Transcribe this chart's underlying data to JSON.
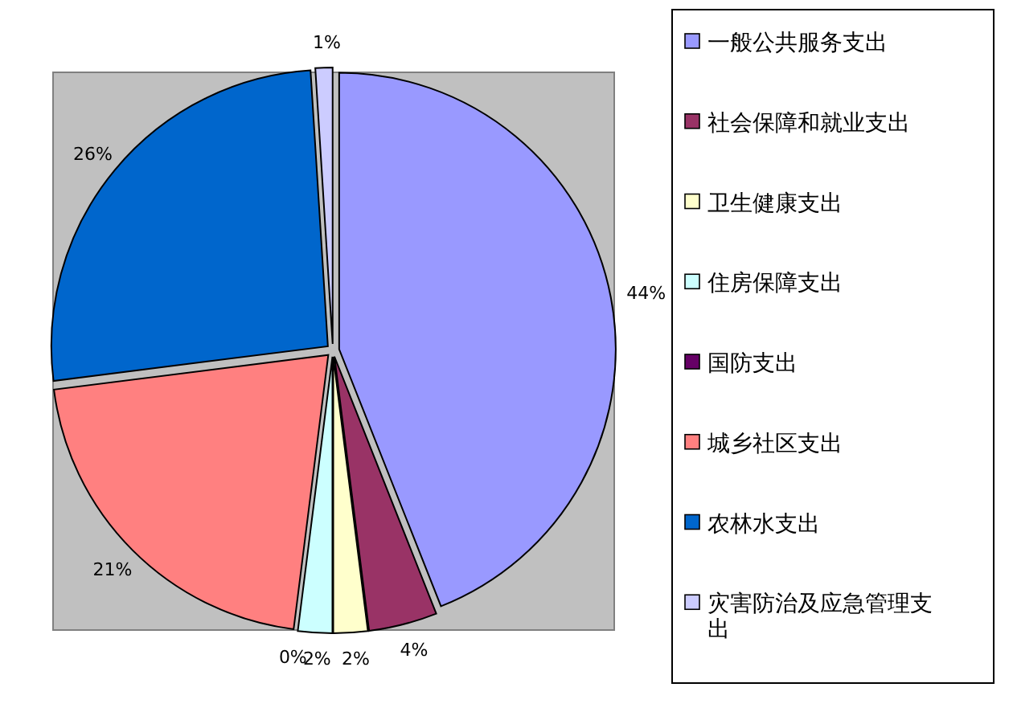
{
  "chart_data": {
    "type": "pie",
    "categories": [
      "一般公共服务支出",
      "社会保障和就业支出",
      "卫生健康支出",
      "住房保障支出",
      "国防支出",
      "城乡社区支出",
      "农林水支出",
      "灾害防治及应急管理支出"
    ],
    "values": [
      44,
      4,
      2,
      2,
      0,
      21,
      26,
      1
    ],
    "colors": [
      "#9999ff",
      "#993366",
      "#ffffcc",
      "#ccffff",
      "#660066",
      "#ff8080",
      "#0066cc",
      "#ccccff"
    ],
    "value_labels": [
      "44%",
      "4%",
      "2%",
      "2%",
      "0%",
      "21%",
      "26%",
      "1%"
    ],
    "legend": "right"
  }
}
